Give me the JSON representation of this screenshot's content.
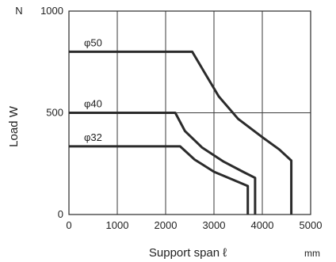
{
  "chart_data": {
    "type": "line",
    "title": "",
    "xlabel": "Support span ℓ",
    "x_unit": "mm",
    "ylabel": "Load W",
    "y_unit": "N",
    "xlim": [
      0,
      5000
    ],
    "ylim": [
      0,
      1000
    ],
    "xticks": [
      0,
      1000,
      2000,
      3000,
      4000,
      5000
    ],
    "yticks": [
      0,
      500,
      1000
    ],
    "x_tick_labels": [
      "0",
      "1000",
      "2000",
      "3000",
      "4000",
      "5000"
    ],
    "y_tick_labels": [
      "0",
      "500",
      "1000"
    ],
    "grid": true,
    "series": [
      {
        "name": "φ50",
        "x": [
          0,
          2550,
          2800,
          3100,
          3500,
          4000,
          4350,
          4600,
          4600
        ],
        "y": [
          800,
          800,
          700,
          580,
          470,
          380,
          320,
          265,
          0
        ]
      },
      {
        "name": "φ40",
        "x": [
          0,
          2200,
          2400,
          2750,
          3200,
          3600,
          3850,
          3850
        ],
        "y": [
          500,
          500,
          410,
          330,
          260,
          210,
          180,
          0
        ]
      },
      {
        "name": "φ32",
        "x": [
          0,
          2300,
          2600,
          3000,
          3400,
          3700,
          3700
        ],
        "y": [
          335,
          335,
          270,
          210,
          170,
          140,
          0
        ]
      }
    ]
  }
}
